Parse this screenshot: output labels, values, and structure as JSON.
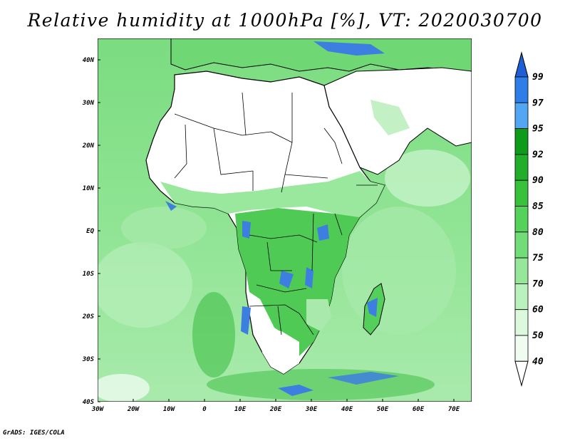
{
  "title": "Relative humidity at 1000hPa [%], VT: 2020030700",
  "credit": "GrADS: IGES/COLA",
  "lat_labels": [
    "40N",
    "30N",
    "20N",
    "10N",
    "EQ",
    "10S",
    "20S",
    "30S",
    "40S"
  ],
  "lon_labels": [
    "30W",
    "20W",
    "10W",
    "0",
    "10E",
    "20E",
    "30E",
    "40E",
    "50E",
    "60E",
    "70E"
  ],
  "colorbar": {
    "levels": [
      "99",
      "97",
      "95",
      "92",
      "90",
      "85",
      "80",
      "75",
      "70",
      "60",
      "50",
      "40"
    ],
    "colors": [
      "#1e5fd8",
      "#2f7ee8",
      "#52a6f2",
      "#0f9b1a",
      "#22ad2a",
      "#38c23c",
      "#55d25a",
      "#72dc78",
      "#96e79a",
      "#baf1bc",
      "#dcf8dd",
      "#f0fcf0"
    ]
  },
  "colors": {
    "ocean_base": "#8fe493",
    "land_dry": "#ffffff",
    "land_moist": "#5fd265",
    "wet_blue": "#3d7fe0",
    "border": "#000000"
  }
}
